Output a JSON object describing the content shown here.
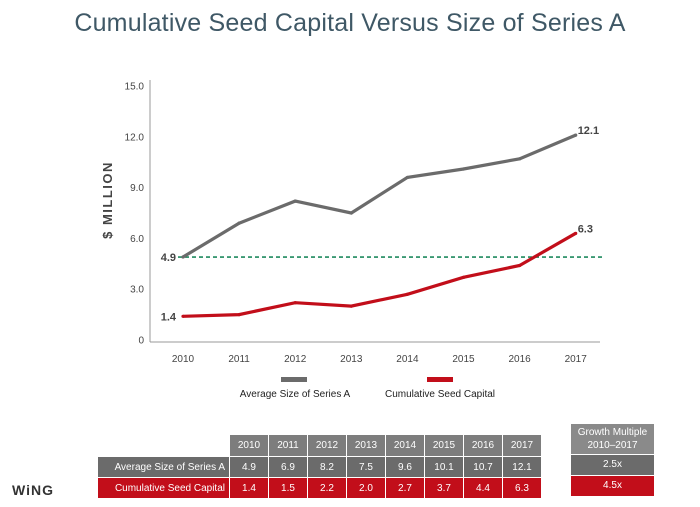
{
  "title": "Cumulative Seed Capital Versus Size of Series A",
  "logo": "WiNG",
  "chart_data": {
    "type": "line",
    "title": "Cumulative Seed Capital Versus Size of Series A",
    "ylabel": "$ MILLION",
    "xlabel": "",
    "ylim": [
      0,
      15
    ],
    "yticks": [
      "0",
      "3.0",
      "6.0",
      "9.0",
      "12.0",
      "15.0"
    ],
    "ytick_values": [
      0,
      3,
      6,
      9,
      12,
      15
    ],
    "categories": [
      "2010",
      "2011",
      "2012",
      "2013",
      "2014",
      "2015",
      "2016",
      "2017"
    ],
    "series": [
      {
        "name": "Average Size of Series A",
        "color": "#6b6b6b",
        "values": [
          4.9,
          6.9,
          8.2,
          7.5,
          9.6,
          10.1,
          10.7,
          12.1
        ],
        "start_label": "4.9",
        "end_label": "12.1"
      },
      {
        "name": "Cumulative Seed Capital",
        "color": "#c20e1a",
        "values": [
          1.4,
          1.5,
          2.2,
          2.0,
          2.7,
          3.7,
          4.4,
          6.3
        ],
        "start_label": "1.4",
        "end_label": "6.3"
      }
    ],
    "reference_line": {
      "value": 4.9,
      "color": "#1f8a5e",
      "style": "dashed"
    },
    "legend": "bottom"
  },
  "table": {
    "years": [
      "2010",
      "2011",
      "2012",
      "2013",
      "2014",
      "2015",
      "2016",
      "2017"
    ],
    "rows": [
      {
        "label": "Average Size of Series A",
        "values": [
          "4.9",
          "6.9",
          "8.2",
          "7.5",
          "9.6",
          "10.1",
          "10.7",
          "12.1"
        ]
      },
      {
        "label": "Cumulative Seed Capital",
        "values": [
          "1.4",
          "1.5",
          "2.2",
          "2.0",
          "2.7",
          "3.7",
          "4.4",
          "6.3"
        ]
      }
    ]
  },
  "growth": {
    "header_line1": "Growth Multiple",
    "header_line2": "2010–2017",
    "values": [
      "2.5x",
      "4.5x"
    ]
  },
  "colors": {
    "gray": "#6b6b6b",
    "red": "#c20e1a",
    "title": "#3f5866"
  }
}
